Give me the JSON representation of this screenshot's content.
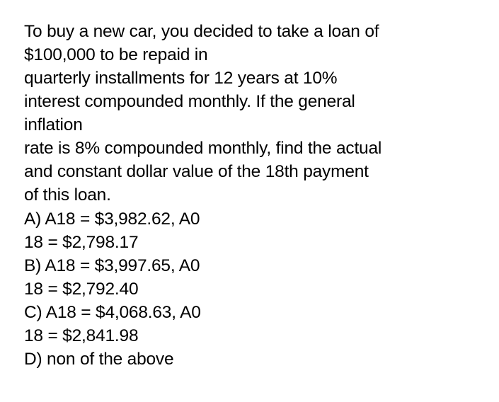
{
  "question": {
    "line1": "To buy a new car, you decided to take a loan of",
    "line2": "$100,000 to be repaid in",
    "line3": "quarterly installments for 12 years at 10%",
    "line4": "interest compounded monthly. If the general",
    "line5": "inflation",
    "line6": "rate is 8% compounded monthly, find the actual",
    "line7": "and constant dollar value of the 18th payment",
    "line8": "of this loan.",
    "optA_1": "A) A18 = $3,982.62, A0",
    "optA_2": "18 = $2,798.17",
    "optB_1": "B) A18 = $3,997.65, A0",
    "optB_2": "18 = $2,792.40",
    "optC_1": "C) A18 = $4,068.63, A0",
    "optC_2": "18 = $2,841.98",
    "optD": "D) non of the above"
  },
  "styling": {
    "fontsize": 24.5,
    "color": "#000000",
    "background": "#ffffff",
    "font_family": "-apple-system, Helvetica, Arial, sans-serif",
    "line_height": 1.35
  }
}
